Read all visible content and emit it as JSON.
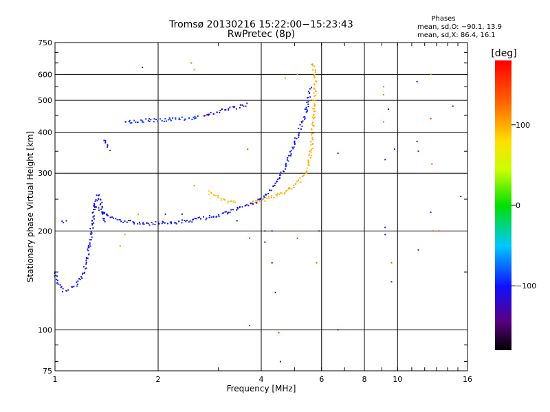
{
  "chart_data": {
    "type": "scatter",
    "title": "Tromsø 20130216 15:22:00−15:23:43",
    "subtitle": "RwPretec (8p)",
    "xlabel": "Frequency [MHz]",
    "ylabel": "Stationary phase Virtual Height [km]",
    "x_scale": "log",
    "y_scale": "log",
    "xlim": [
      1,
      16
    ],
    "ylim": [
      75,
      750
    ],
    "x_ticks": [
      1,
      2,
      4,
      6,
      8,
      10,
      16
    ],
    "x_tick_labels": [
      "1",
      "2",
      "4",
      "6",
      "8",
      "10",
      "16"
    ],
    "x_grid": [
      2,
      4,
      6,
      8,
      10
    ],
    "y_ticks": [
      75,
      100,
      200,
      300,
      400,
      500,
      600,
      750
    ],
    "y_tick_labels": [
      "75",
      "100",
      "200",
      "300",
      "400",
      "500",
      "600",
      "750"
    ],
    "y_grid": [
      100,
      200,
      300,
      400,
      500,
      600
    ],
    "grid": true,
    "stats": {
      "heading": "Phases",
      "line_o": "mean, sd,O: −90.1, 13.9",
      "line_x": "mean, sd,X:  86.4, 16.1"
    },
    "colorbar": {
      "label": "[deg]",
      "range": [
        -180,
        180
      ],
      "ticks": [
        100,
        0,
        -100
      ],
      "tick_labels": [
        "100",
        "0",
        "−100"
      ]
    },
    "traces": [
      {
        "phase": -95,
        "points": [
          [
            1.0,
            150
          ],
          [
            1.02,
            140
          ],
          [
            1.04,
            134
          ],
          [
            1.06,
            132
          ],
          [
            1.08,
            131
          ],
          [
            1.1,
            131
          ]
        ]
      },
      {
        "phase": -95,
        "points": [
          [
            1.05,
            212
          ],
          [
            1.07,
            214
          ],
          [
            1.09,
            215
          ]
        ]
      },
      {
        "phase": -100,
        "points": [
          [
            1.12,
            135
          ],
          [
            1.16,
            138
          ],
          [
            1.2,
            145
          ],
          [
            1.24,
            160
          ],
          [
            1.26,
            180
          ],
          [
            1.28,
            205
          ],
          [
            1.3,
            230
          ],
          [
            1.32,
            250
          ],
          [
            1.34,
            258
          ],
          [
            1.36,
            245
          ],
          [
            1.38,
            225
          ],
          [
            1.4,
            210
          ]
        ]
      },
      {
        "phase": -100,
        "points": [
          [
            1.3,
            240
          ],
          [
            1.38,
            228
          ],
          [
            1.45,
            220
          ],
          [
            1.55,
            215
          ],
          [
            1.7,
            212
          ],
          [
            1.85,
            211
          ],
          [
            2.0,
            211
          ],
          [
            2.2,
            212
          ],
          [
            2.4,
            214
          ],
          [
            2.6,
            217
          ],
          [
            2.8,
            220
          ],
          [
            3.0,
            224
          ],
          [
            3.2,
            228
          ],
          [
            3.4,
            233
          ],
          [
            3.6,
            238
          ],
          [
            3.8,
            244
          ],
          [
            4.0,
            250
          ],
          [
            4.2,
            262
          ],
          [
            4.4,
            278
          ],
          [
            4.6,
            300
          ],
          [
            4.8,
            330
          ],
          [
            5.0,
            370
          ],
          [
            5.2,
            410
          ],
          [
            5.4,
            460
          ],
          [
            5.5,
            510
          ],
          [
            5.6,
            550
          ]
        ]
      },
      {
        "phase": -90,
        "points": [
          [
            1.6,
            430
          ],
          [
            1.75,
            432
          ],
          [
            1.9,
            435
          ],
          [
            2.05,
            436
          ],
          [
            2.2,
            438
          ],
          [
            2.35,
            440
          ],
          [
            2.5,
            442
          ],
          [
            2.65,
            444
          ]
        ]
      },
      {
        "phase": -110,
        "points": [
          [
            2.7,
            450
          ],
          [
            2.9,
            458
          ],
          [
            3.1,
            465
          ],
          [
            3.3,
            472
          ],
          [
            3.5,
            480
          ],
          [
            3.65,
            488
          ]
        ]
      },
      {
        "phase": 95,
        "points": [
          [
            2.8,
            262
          ],
          [
            2.95,
            255
          ],
          [
            3.1,
            250
          ],
          [
            3.25,
            246
          ],
          [
            3.4,
            244
          ]
        ]
      },
      {
        "phase": 100,
        "points": [
          [
            3.8,
            245
          ],
          [
            4.0,
            248
          ],
          [
            4.2,
            252
          ],
          [
            4.4,
            256
          ],
          [
            4.6,
            261
          ],
          [
            4.8,
            267
          ],
          [
            5.0,
            275
          ],
          [
            5.2,
            285
          ],
          [
            5.4,
            300
          ],
          [
            5.5,
            320
          ],
          [
            5.6,
            350
          ],
          [
            5.65,
            400
          ],
          [
            5.7,
            460
          ],
          [
            5.72,
            520
          ],
          [
            5.75,
            580
          ],
          [
            5.7,
            625
          ],
          [
            5.65,
            645
          ],
          [
            5.6,
            630
          ]
        ]
      },
      {
        "phase": -95,
        "points": [
          [
            1.4,
            380
          ],
          [
            1.42,
            360
          ],
          [
            1.45,
            350
          ]
        ]
      }
    ],
    "scatter": [
      [
        1.8,
        630,
        -95
      ],
      [
        2.5,
        650,
        125
      ],
      [
        2.55,
        620,
        110
      ],
      [
        3.65,
        355,
        140
      ],
      [
        3.7,
        190,
        140
      ],
      [
        3.7,
        103,
        150
      ],
      [
        4.1,
        200,
        -95
      ],
      [
        4.1,
        185,
        -100
      ],
      [
        4.3,
        200,
        -95
      ],
      [
        4.3,
        160,
        -95
      ],
      [
        4.4,
        130,
        -95
      ],
      [
        4.5,
        98,
        155
      ],
      [
        4.55,
        80,
        -95
      ],
      [
        4.7,
        585,
        115
      ],
      [
        5.1,
        600,
        115
      ],
      [
        5.1,
        190,
        150
      ],
      [
        5.8,
        160,
        145
      ],
      [
        5.9,
        200,
        -95
      ],
      [
        6.7,
        345,
        -95
      ],
      [
        6.7,
        100,
        -95
      ],
      [
        9.1,
        550,
        120
      ],
      [
        9.1,
        520,
        120
      ],
      [
        9.1,
        430,
        130
      ],
      [
        9.2,
        330,
        -95
      ],
      [
        9.2,
        205,
        -100
      ],
      [
        9.2,
        195,
        -95
      ],
      [
        9.4,
        470,
        -100
      ],
      [
        9.6,
        160,
        135
      ],
      [
        9.6,
        140,
        -95
      ],
      [
        9.8,
        355,
        -95
      ],
      [
        11.4,
        570,
        -95
      ],
      [
        11.4,
        375,
        -95
      ],
      [
        11.5,
        350,
        -95
      ],
      [
        11.5,
        175,
        -95
      ],
      [
        12.5,
        600,
        110
      ],
      [
        12.5,
        440,
        160
      ],
      [
        12.6,
        320,
        130
      ],
      [
        12.5,
        228,
        -95
      ],
      [
        12.7,
        200,
        145
      ],
      [
        13.2,
        200,
        150
      ],
      [
        14.5,
        480,
        -95
      ],
      [
        15.3,
        255,
        -95
      ],
      [
        1.55,
        180,
        110
      ],
      [
        1.6,
        195,
        110
      ],
      [
        1.75,
        225,
        110
      ],
      [
        2.1,
        225,
        -95
      ],
      [
        2.35,
        225,
        -95
      ],
      [
        2.55,
        275,
        110
      ],
      [
        3.4,
        215,
        -95
      ]
    ]
  }
}
